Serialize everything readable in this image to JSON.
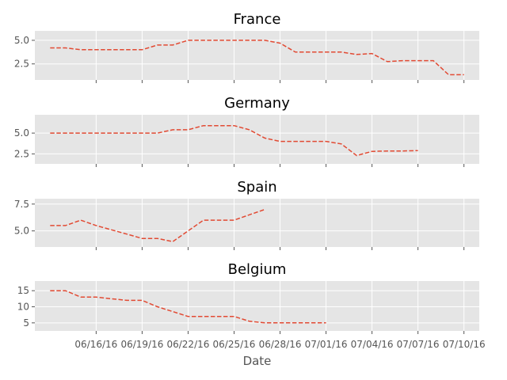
{
  "chart_data": {
    "type": "line",
    "sharex": true,
    "xlabel": "Date",
    "x_ticks": [
      "06/16/16",
      "06/19/16",
      "06/22/16",
      "06/25/16",
      "06/28/16",
      "07/01/16",
      "07/04/16",
      "07/07/16",
      "07/10/16"
    ],
    "grid": true,
    "style": "ggplot",
    "line_color": "#e24a33",
    "line_style": "dashed",
    "panels": [
      {
        "title": "France",
        "ylim": [
          0.8,
          6.0
        ],
        "yticks": [
          2.5,
          5.0
        ],
        "ytick_labels": [
          "2.5",
          "5.0"
        ],
        "x": [
          "2016-06-13",
          "2016-06-14",
          "2016-06-15",
          "2016-06-16",
          "2016-06-17",
          "2016-06-18",
          "2016-06-19",
          "2016-06-20",
          "2016-06-21",
          "2016-06-22",
          "2016-06-23",
          "2016-06-24",
          "2016-06-25",
          "2016-06-26",
          "2016-06-27",
          "2016-06-28",
          "2016-06-29",
          "2016-06-30",
          "2016-07-01",
          "2016-07-02",
          "2016-07-03",
          "2016-07-04",
          "2016-07-05",
          "2016-07-06",
          "2016-07-07",
          "2016-07-08",
          "2016-07-09",
          "2016-07-10"
        ],
        "y": [
          4.2,
          4.2,
          4.0,
          4.0,
          4.0,
          4.0,
          4.0,
          4.5,
          4.5,
          5.0,
          5.0,
          5.0,
          5.0,
          5.0,
          5.0,
          4.7,
          3.75,
          3.75,
          3.75,
          3.75,
          3.5,
          3.6,
          2.75,
          2.85,
          2.85,
          2.85,
          1.35,
          1.35
        ]
      },
      {
        "title": "Germany",
        "ylim": [
          1.3,
          7.2
        ],
        "yticks": [
          2.5,
          5.0
        ],
        "ytick_labels": [
          "2.5",
          "5.0"
        ],
        "x": [
          "2016-06-13",
          "2016-06-14",
          "2016-06-15",
          "2016-06-16",
          "2016-06-17",
          "2016-06-18",
          "2016-06-19",
          "2016-06-20",
          "2016-06-21",
          "2016-06-22",
          "2016-06-23",
          "2016-06-24",
          "2016-06-25",
          "2016-06-26",
          "2016-06-27",
          "2016-06-28",
          "2016-06-29",
          "2016-06-30",
          "2016-07-01",
          "2016-07-02",
          "2016-07-03",
          "2016-07-04",
          "2016-07-05",
          "2016-07-06",
          "2016-07-07"
        ],
        "y": [
          5.0,
          5.0,
          5.0,
          5.0,
          5.0,
          5.0,
          5.0,
          5.0,
          5.4,
          5.4,
          5.9,
          5.9,
          5.9,
          5.4,
          4.4,
          4.0,
          4.0,
          4.0,
          4.0,
          3.7,
          2.3,
          2.8,
          2.85,
          2.85,
          2.9
        ]
      },
      {
        "title": "Spain",
        "ylim": [
          3.5,
          8.0
        ],
        "yticks": [
          5.0,
          7.5
        ],
        "ytick_labels": [
          "5.0",
          "7.5"
        ],
        "x": [
          "2016-06-13",
          "2016-06-14",
          "2016-06-15",
          "2016-06-16",
          "2016-06-17",
          "2016-06-18",
          "2016-06-19",
          "2016-06-20",
          "2016-06-21",
          "2016-06-22",
          "2016-06-23",
          "2016-06-24",
          "2016-06-25",
          "2016-06-26",
          "2016-06-27"
        ],
        "y": [
          5.5,
          5.5,
          6.0,
          5.5,
          5.1,
          4.7,
          4.3,
          4.3,
          4.0,
          5.0,
          6.0,
          6.0,
          6.0,
          6.5,
          7.0
        ]
      },
      {
        "title": "Belgium",
        "ylim": [
          2.5,
          18.0
        ],
        "yticks": [
          5,
          10,
          15
        ],
        "ytick_labels": [
          "5",
          "10",
          "15"
        ],
        "x": [
          "2016-06-13",
          "2016-06-14",
          "2016-06-15",
          "2016-06-16",
          "2016-06-17",
          "2016-06-18",
          "2016-06-19",
          "2016-06-20",
          "2016-06-21",
          "2016-06-22",
          "2016-06-23",
          "2016-06-24",
          "2016-06-25",
          "2016-06-26",
          "2016-06-27",
          "2016-06-28",
          "2016-06-29",
          "2016-06-30",
          "2016-07-01"
        ],
        "y": [
          15,
          15,
          13,
          13,
          12.5,
          12,
          12,
          10,
          8.5,
          7,
          7,
          7,
          7,
          5.5,
          5,
          5,
          5,
          5,
          5
        ]
      }
    ]
  }
}
